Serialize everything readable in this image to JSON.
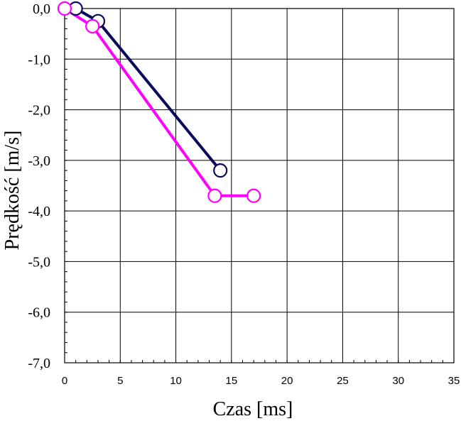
{
  "chart_data": {
    "type": "line",
    "xlabel": "Czas [ms]",
    "ylabel": "Prędkość [m/s]",
    "xlim": [
      0,
      35
    ],
    "ylim": [
      -7,
      0
    ],
    "x_ticks": [
      0,
      5,
      10,
      15,
      20,
      25,
      30,
      35
    ],
    "y_ticks": [
      0,
      -1,
      -2,
      -3,
      -4,
      -5,
      -6,
      -7
    ],
    "x_tick_labels": [
      "0",
      "5",
      "10",
      "15",
      "20",
      "25",
      "30",
      "35"
    ],
    "y_tick_labels": [
      "0,0",
      "-1,0",
      "-2,0",
      "-3,0",
      "-4,0",
      "-5,0",
      "-6,0",
      "-7,0"
    ],
    "grid": true,
    "series": [
      {
        "color": "#0a0a5a",
        "points": [
          [
            1.0,
            0.0
          ],
          [
            3.0,
            -0.25
          ],
          [
            14.0,
            -3.2
          ]
        ]
      },
      {
        "color": "#ff00ff",
        "points": [
          [
            0.0,
            0.0
          ],
          [
            2.5,
            -0.35
          ],
          [
            13.5,
            -3.7
          ],
          [
            17.0,
            -3.7
          ]
        ]
      }
    ]
  }
}
